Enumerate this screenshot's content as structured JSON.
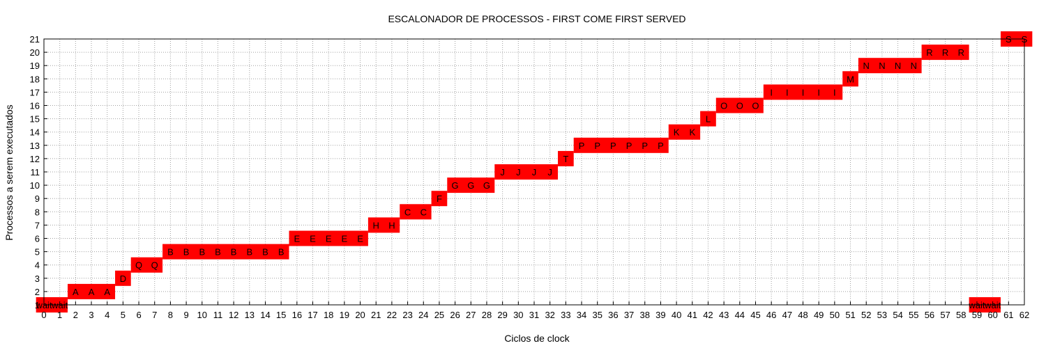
{
  "chart_data": {
    "type": "bar",
    "title": "ESCALONADOR DE PROCESSOS - FIRST COME FIRST SERVED",
    "xlabel": "Ciclos de clock",
    "ylabel": "Processos a serem executados",
    "xlim": [
      0,
      62
    ],
    "ylim": [
      1,
      21
    ],
    "grid": true,
    "color": "#ff0000",
    "segments": [
      {
        "y": 1,
        "x0": -0.5,
        "x1": 1.5,
        "labels": [
          "wait",
          "wait"
        ]
      },
      {
        "y": 2,
        "x0": 1.5,
        "x1": 4.5,
        "labels": [
          "A",
          "A",
          "A"
        ]
      },
      {
        "y": 3,
        "x0": 4.5,
        "x1": 5.5,
        "labels": [
          "D"
        ]
      },
      {
        "y": 4,
        "x0": 5.5,
        "x1": 7.5,
        "labels": [
          "Q",
          "Q"
        ]
      },
      {
        "y": 5,
        "x0": 7.5,
        "x1": 15.5,
        "labels": [
          "B",
          "B",
          "B",
          "B",
          "B",
          "B",
          "B",
          "B"
        ]
      },
      {
        "y": 6,
        "x0": 15.5,
        "x1": 20.5,
        "labels": [
          "E",
          "E",
          "E",
          "E",
          "E"
        ]
      },
      {
        "y": 7,
        "x0": 20.5,
        "x1": 22.5,
        "labels": [
          "H",
          "H"
        ]
      },
      {
        "y": 8,
        "x0": 22.5,
        "x1": 24.5,
        "labels": [
          "C",
          "C"
        ]
      },
      {
        "y": 9,
        "x0": 24.5,
        "x1": 25.5,
        "labels": [
          "F"
        ]
      },
      {
        "y": 10,
        "x0": 25.5,
        "x1": 28.5,
        "labels": [
          "G",
          "G",
          "G"
        ]
      },
      {
        "y": 11,
        "x0": 28.5,
        "x1": 32.5,
        "labels": [
          "J",
          "J",
          "J",
          "J"
        ]
      },
      {
        "y": 12,
        "x0": 32.5,
        "x1": 33.5,
        "labels": [
          "T"
        ]
      },
      {
        "y": 13,
        "x0": 33.5,
        "x1": 39.5,
        "labels": [
          "P",
          "P",
          "P",
          "P",
          "P",
          "P"
        ]
      },
      {
        "y": 14,
        "x0": 39.5,
        "x1": 41.5,
        "labels": [
          "K",
          "K"
        ]
      },
      {
        "y": 15,
        "x0": 41.5,
        "x1": 42.5,
        "labels": [
          "L"
        ]
      },
      {
        "y": 16,
        "x0": 42.5,
        "x1": 45.5,
        "labels": [
          "O",
          "O",
          "O"
        ]
      },
      {
        "y": 17,
        "x0": 45.5,
        "x1": 50.5,
        "labels": [
          "I",
          "I",
          "I",
          "I",
          "I"
        ]
      },
      {
        "y": 18,
        "x0": 50.5,
        "x1": 51.5,
        "labels": [
          "M"
        ]
      },
      {
        "y": 19,
        "x0": 51.5,
        "x1": 55.5,
        "labels": [
          "N",
          "N",
          "N",
          "N"
        ]
      },
      {
        "y": 20,
        "x0": 55.5,
        "x1": 58.5,
        "labels": [
          "R",
          "R",
          "R"
        ]
      },
      {
        "y": 1,
        "x0": 58.5,
        "x1": 60.5,
        "labels": [
          "wait",
          "wait"
        ]
      },
      {
        "y": 21,
        "x0": 60.5,
        "x1": 62.5,
        "labels": [
          "S",
          "S"
        ]
      }
    ]
  }
}
